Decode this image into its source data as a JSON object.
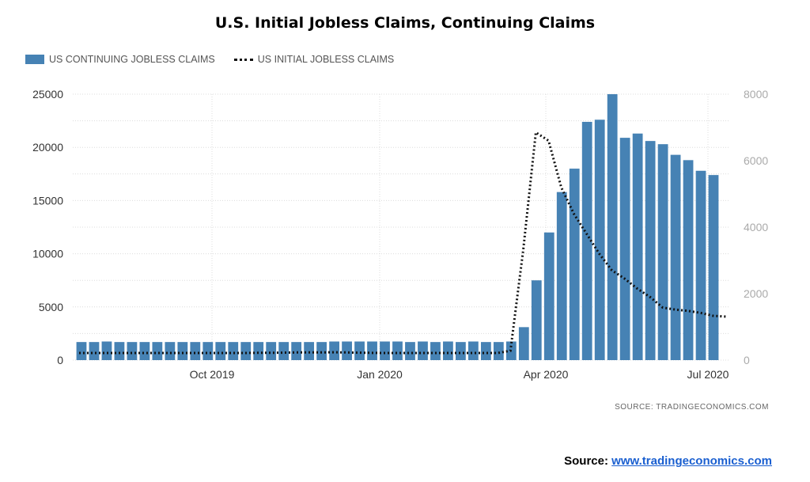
{
  "title": "U.S. Initial Jobless Claims, Continuing Claims",
  "legend": {
    "continuing": "US CONTINUING JOBLESS CLAIMS",
    "initial": "US INITIAL JOBLESS CLAIMS"
  },
  "source_small": "SOURCE: TRADINGECONOMICS.COM",
  "source_bottom": {
    "label": "Source:",
    "link": "www.tradingeconomics.com"
  },
  "colors": {
    "bars": "#4682b4",
    "line": "#111111"
  },
  "chart_data": {
    "type": "bar",
    "title": "U.S. Initial Jobless Claims, Continuing Claims",
    "x_tick_labels": [
      "Oct 2019",
      "Jan 2020",
      "Apr 2020",
      "Jul 2020"
    ],
    "y_left": {
      "ticks": [
        0,
        5000,
        10000,
        15000,
        20000,
        25000
      ],
      "lim": [
        0,
        25000
      ]
    },
    "y_right": {
      "ticks": [
        0,
        2000,
        4000,
        6000,
        8000
      ],
      "lim": [
        0,
        8000
      ]
    },
    "grid": true,
    "legend_position": "top-left",
    "series": [
      {
        "name": "US CONTINUING JOBLESS CLAIMS",
        "type": "bar",
        "axis": "left",
        "values": [
          1700,
          1700,
          1750,
          1700,
          1700,
          1700,
          1700,
          1700,
          1700,
          1700,
          1700,
          1700,
          1700,
          1700,
          1700,
          1700,
          1700,
          1700,
          1700,
          1700,
          1750,
          1750,
          1750,
          1750,
          1750,
          1750,
          1700,
          1750,
          1700,
          1750,
          1700,
          1750,
          1700,
          1700,
          1750,
          3100,
          7500,
          12000,
          15800,
          18000,
          22400,
          22600,
          25000,
          20900,
          21300,
          20600,
          20300,
          19300,
          18800,
          17800,
          17400
        ]
      },
      {
        "name": "US INITIAL JOBLESS CLAIMS",
        "type": "line",
        "style": "dotted",
        "axis": "right",
        "values": [
          215,
          215,
          215,
          215,
          215,
          215,
          215,
          215,
          215,
          215,
          215,
          215,
          215,
          215,
          220,
          220,
          225,
          230,
          230,
          230,
          235,
          230,
          225,
          220,
          215,
          215,
          215,
          215,
          215,
          215,
          215,
          215,
          215,
          215,
          280,
          3300,
          6850,
          6600,
          5200,
          4400,
          3800,
          3200,
          2700,
          2450,
          2150,
          1900,
          1580,
          1520,
          1480,
          1420,
          1330,
          1310
        ]
      }
    ]
  }
}
